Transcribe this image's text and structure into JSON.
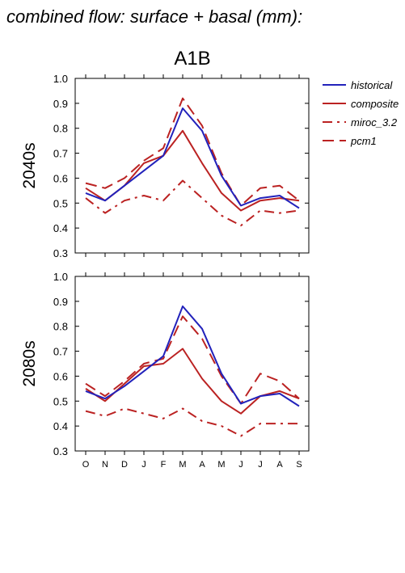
{
  "figure": {
    "title": "combined flow: surface + basal (mm):",
    "scenario": "A1B"
  },
  "colors": {
    "historical": "#2222bb",
    "composite": "#bb2222",
    "miroc_3.2": "#bb2222",
    "pcm1": "#bb2222",
    "axis": "#000000"
  },
  "legend": [
    {
      "name": "historical",
      "style": "solid",
      "color": "#2222bb"
    },
    {
      "name": "composite",
      "style": "solid",
      "color": "#bb2222"
    },
    {
      "name": "miroc_3.2",
      "style": "dashdot",
      "color": "#bb2222"
    },
    {
      "name": "pcm1",
      "style": "dash",
      "color": "#bb2222"
    }
  ],
  "chart_data": [
    {
      "type": "line",
      "row_label": "2040s",
      "categories": [
        "O",
        "N",
        "D",
        "J",
        "F",
        "M",
        "A",
        "M",
        "J",
        "J",
        "A",
        "S"
      ],
      "ylim": [
        0.3,
        1.0
      ],
      "yticks": [
        "0.3",
        "0.4",
        "0.5",
        "0.6",
        "0.7",
        "0.8",
        "0.9",
        "1.0"
      ],
      "series": [
        {
          "name": "historical",
          "style": "solid",
          "values": [
            0.54,
            0.51,
            0.57,
            0.63,
            0.69,
            0.88,
            0.79,
            0.61,
            0.49,
            0.52,
            0.53,
            0.48
          ]
        },
        {
          "name": "composite",
          "style": "solid",
          "values": [
            0.56,
            0.51,
            0.57,
            0.66,
            0.69,
            0.79,
            0.66,
            0.54,
            0.47,
            0.51,
            0.52,
            0.51
          ]
        },
        {
          "name": "miroc_3.2",
          "style": "dashdot",
          "values": [
            0.52,
            0.46,
            0.51,
            0.53,
            0.51,
            0.59,
            0.52,
            0.45,
            0.41,
            0.47,
            0.46,
            0.47
          ]
        },
        {
          "name": "pcm1",
          "style": "dash",
          "values": [
            0.58,
            0.56,
            0.6,
            0.67,
            0.72,
            0.92,
            0.81,
            0.62,
            0.49,
            0.56,
            0.57,
            0.51
          ]
        }
      ]
    },
    {
      "type": "line",
      "row_label": "2080s",
      "categories": [
        "O",
        "N",
        "D",
        "J",
        "F",
        "M",
        "A",
        "M",
        "J",
        "J",
        "A",
        "S"
      ],
      "ylim": [
        0.3,
        1.0
      ],
      "yticks": [
        "0.3",
        "0.4",
        "0.5",
        "0.6",
        "0.7",
        "0.8",
        "0.9",
        "1.0"
      ],
      "series": [
        {
          "name": "historical",
          "style": "solid",
          "values": [
            0.54,
            0.51,
            0.56,
            0.62,
            0.68,
            0.88,
            0.79,
            0.61,
            0.49,
            0.52,
            0.53,
            0.48
          ]
        },
        {
          "name": "composite",
          "style": "solid",
          "values": [
            0.55,
            0.5,
            0.57,
            0.64,
            0.65,
            0.71,
            0.59,
            0.5,
            0.45,
            0.52,
            0.54,
            0.51
          ]
        },
        {
          "name": "miroc_3.2",
          "style": "dashdot",
          "values": [
            0.46,
            0.44,
            0.47,
            0.45,
            0.43,
            0.47,
            0.42,
            0.4,
            0.36,
            0.41,
            0.41,
            0.41
          ]
        },
        {
          "name": "pcm1",
          "style": "dash",
          "values": [
            0.57,
            0.52,
            0.58,
            0.65,
            0.67,
            0.84,
            0.75,
            0.6,
            0.49,
            0.61,
            0.58,
            0.51
          ]
        }
      ]
    }
  ]
}
